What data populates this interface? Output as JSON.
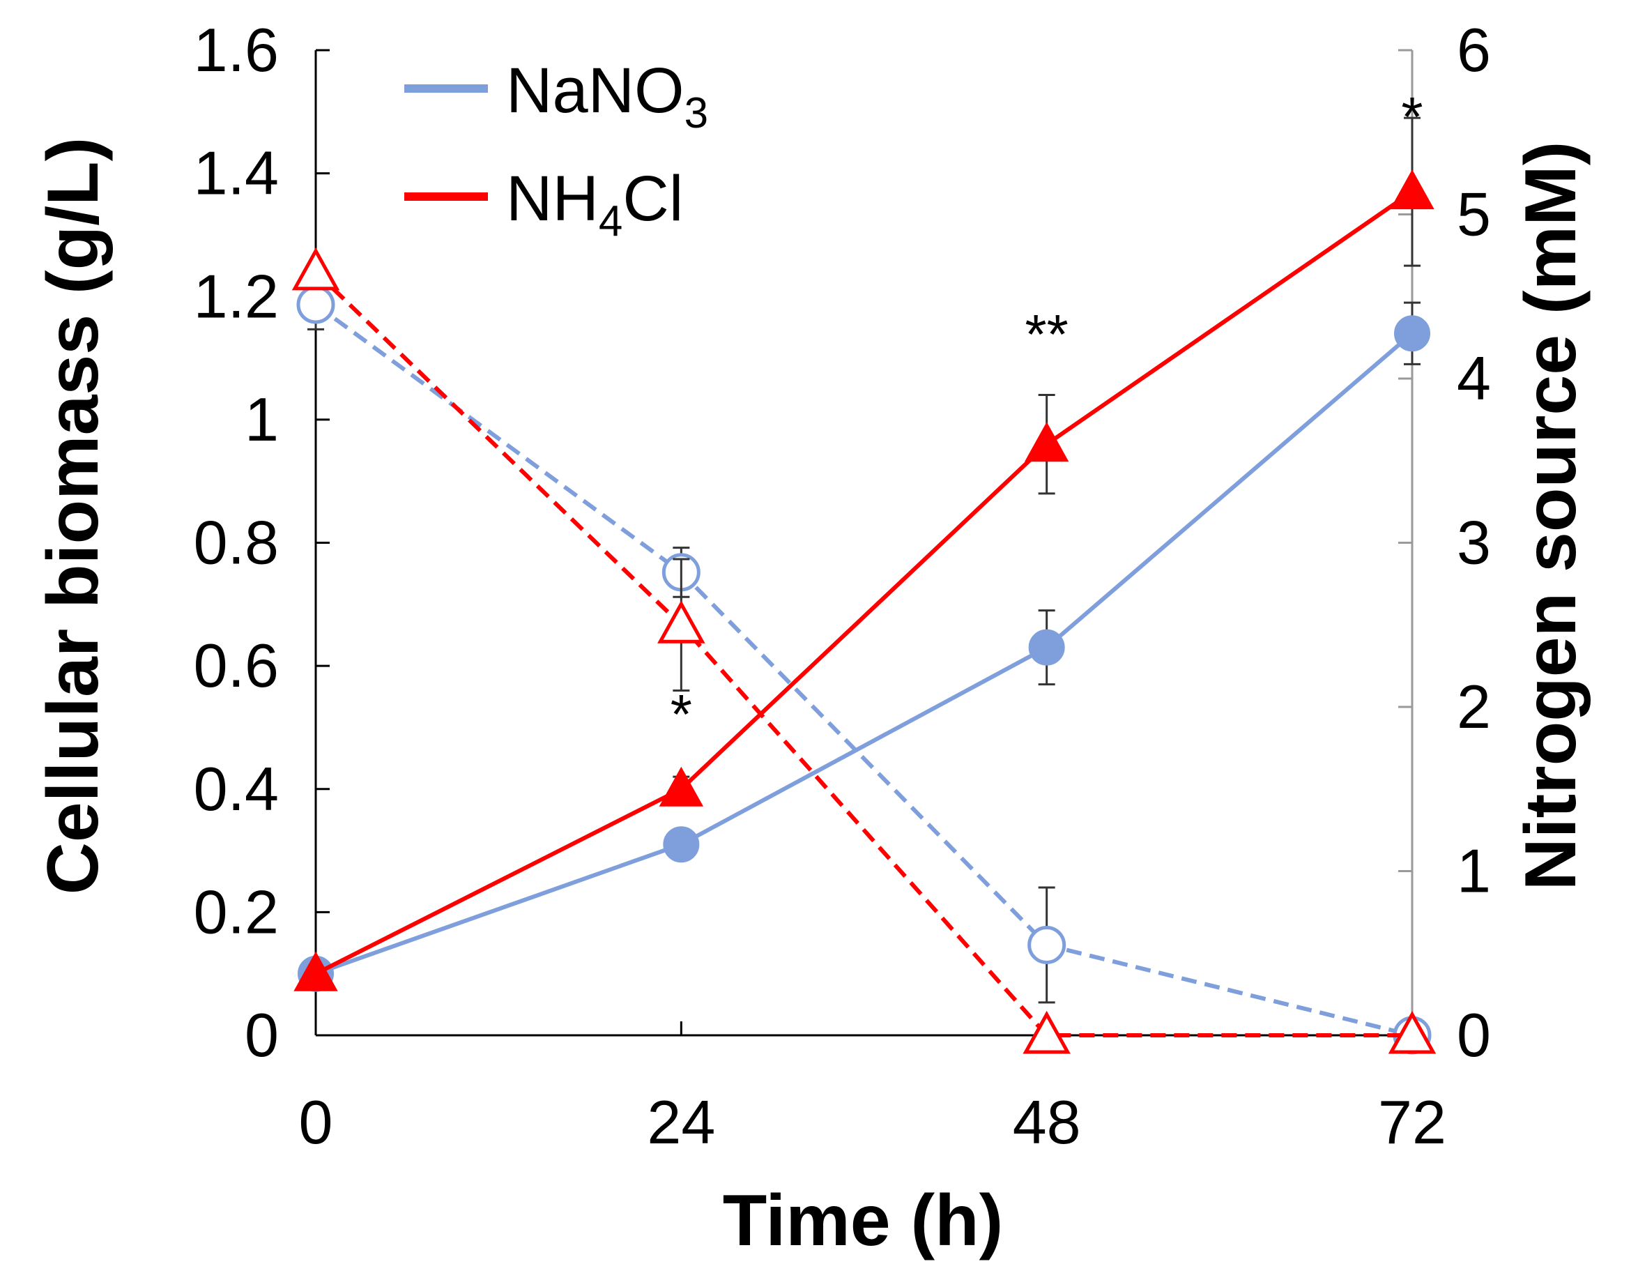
{
  "chart_data": {
    "type": "line",
    "title": "",
    "xlabel": "Time (h)",
    "ylabel_left": "Cellular biomass (g/L)",
    "ylabel_right": "Nitrogen source (mM)",
    "x": [
      0,
      24,
      48,
      72
    ],
    "x_ticks": [
      "0",
      "24",
      "48",
      "72"
    ],
    "ylim_left": [
      0,
      1.6
    ],
    "yticks_left": [
      "0",
      "0.2",
      "0.4",
      "0.6",
      "0.8",
      "1",
      "1.2",
      "1.4",
      "1.6"
    ],
    "ylim_right": [
      0,
      6
    ],
    "yticks_right": [
      "0",
      "1",
      "2",
      "3",
      "4",
      "5",
      "6"
    ],
    "grid": false,
    "legend_position": "top-left",
    "legend": [
      {
        "label_main": "NaNO",
        "label_sub": "3",
        "label_tail": "",
        "color": "#7f9fdc"
      },
      {
        "label_main": "NH",
        "label_sub": "4",
        "label_tail": "Cl",
        "color": "#ff0000"
      }
    ],
    "series": [
      {
        "name": "NaNO3",
        "measure": "biomass",
        "axis": "left",
        "color": "#7f9fdc",
        "dashed": false,
        "marker": "circle-filled",
        "values": [
          0.1,
          0.31,
          0.63,
          1.14
        ],
        "errors": [
          0.0,
          0.0,
          0.06,
          0.05
        ]
      },
      {
        "name": "NH4Cl",
        "measure": "biomass",
        "axis": "left",
        "color": "#ff0000",
        "dashed": false,
        "marker": "triangle-filled",
        "values": [
          0.1,
          0.4,
          0.96,
          1.37
        ],
        "errors": [
          0.0,
          0.02,
          0.08,
          0.12
        ]
      },
      {
        "name": "NaNO3",
        "measure": "nitrogen",
        "axis": "right",
        "color": "#7f9fdc",
        "dashed": true,
        "marker": "circle-open",
        "values": [
          4.45,
          2.82,
          0.55,
          0.0
        ],
        "errors": [
          0.15,
          0.15,
          0.35,
          0.0
        ]
      },
      {
        "name": "NH4Cl",
        "measure": "nitrogen",
        "axis": "right",
        "color": "#ff0000",
        "dashed": true,
        "marker": "triangle-open",
        "values": [
          4.65,
          2.5,
          0.0,
          0.0
        ],
        "errors": [
          0.0,
          0.4,
          0.0,
          0.0
        ]
      }
    ],
    "annotations": [
      {
        "x": 24,
        "y": 0.4,
        "text": "*"
      },
      {
        "x": 48,
        "y": 0.96,
        "text": "**"
      },
      {
        "x": 72,
        "y": 1.37,
        "text": "*"
      }
    ]
  }
}
